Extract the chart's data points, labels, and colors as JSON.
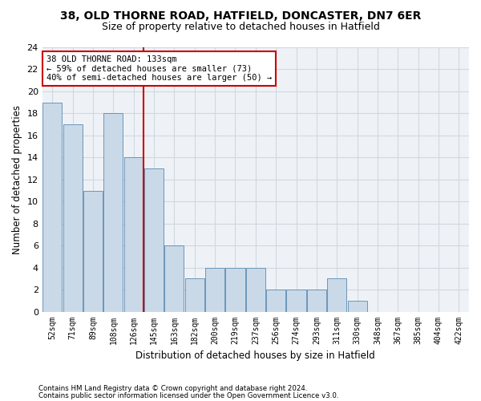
{
  "title1": "38, OLD THORNE ROAD, HATFIELD, DONCASTER, DN7 6ER",
  "title2": "Size of property relative to detached houses in Hatfield",
  "xlabel": "Distribution of detached houses by size in Hatfield",
  "ylabel": "Number of detached properties",
  "footnote1": "Contains HM Land Registry data © Crown copyright and database right 2024.",
  "footnote2": "Contains public sector information licensed under the Open Government Licence v3.0.",
  "annotation_line1": "38 OLD THORNE ROAD: 133sqm",
  "annotation_line2": "← 59% of detached houses are smaller (73)",
  "annotation_line3": "40% of semi-detached houses are larger (50) →",
  "bar_labels": [
    "52sqm",
    "71sqm",
    "89sqm",
    "108sqm",
    "126sqm",
    "145sqm",
    "163sqm",
    "182sqm",
    "200sqm",
    "219sqm",
    "237sqm",
    "256sqm",
    "274sqm",
    "293sqm",
    "311sqm",
    "330sqm",
    "348sqm",
    "367sqm",
    "385sqm",
    "404sqm",
    "422sqm"
  ],
  "bar_values": [
    19,
    17,
    11,
    18,
    14,
    13,
    6,
    3,
    4,
    4,
    4,
    2,
    2,
    2,
    3,
    1,
    0,
    0,
    0,
    0,
    0
  ],
  "bar_color": "#c9d9e8",
  "bar_edgecolor": "#5a8ab0",
  "reference_line_x": 4.5,
  "ylim": [
    0,
    24
  ],
  "yticks": [
    0,
    2,
    4,
    6,
    8,
    10,
    12,
    14,
    16,
    18,
    20,
    22,
    24
  ],
  "property_line_color": "#cc0000",
  "annotation_box_color": "#cc0000",
  "grid_color": "#d0d8e0",
  "background_color": "#eef2f7"
}
